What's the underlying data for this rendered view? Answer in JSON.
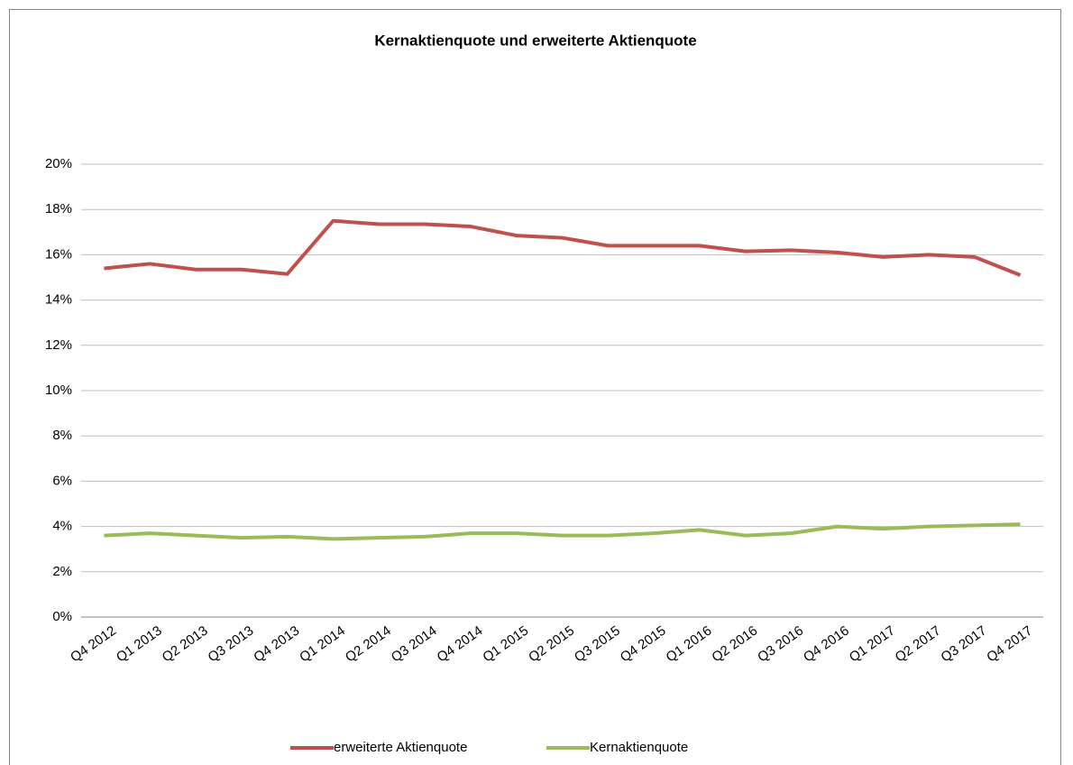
{
  "chart_data": {
    "type": "line",
    "title": "Kernaktienquote und erweiterte Aktienquote",
    "categories": [
      "Q4 2012",
      "Q1 2013",
      "Q2 2013",
      "Q3 2013",
      "Q4 2013",
      "Q1 2014",
      "Q2 2014",
      "Q3 2014",
      "Q4 2014",
      "Q1 2015",
      "Q2 2015",
      "Q3 2015",
      "Q4 2015",
      "Q1 2016",
      "Q2 2016",
      "Q3 2016",
      "Q4 2016",
      "Q1 2017",
      "Q2 2017",
      "Q3 2017",
      "Q4 2017"
    ],
    "series": [
      {
        "name": "erweiterte Aktienquote",
        "color": "#c0504d",
        "values": [
          15.4,
          15.6,
          15.35,
          15.35,
          15.15,
          17.5,
          17.35,
          17.35,
          17.25,
          16.85,
          16.75,
          16.4,
          16.4,
          16.4,
          16.15,
          16.2,
          16.1,
          15.9,
          16.0,
          15.9,
          15.1
        ]
      },
      {
        "name": "Kernaktienquote",
        "color": "#9bbb59",
        "values": [
          3.6,
          3.7,
          3.6,
          3.5,
          3.55,
          3.45,
          3.5,
          3.55,
          3.7,
          3.7,
          3.6,
          3.6,
          3.7,
          3.85,
          3.6,
          3.7,
          4.0,
          3.9,
          4.0,
          4.05,
          4.1
        ]
      }
    ],
    "ylim": [
      0,
      20
    ],
    "yticks": [
      {
        "value": 0,
        "label": "0%"
      },
      {
        "value": 2,
        "label": "2%"
      },
      {
        "value": 4,
        "label": "4%"
      },
      {
        "value": 6,
        "label": "6%"
      },
      {
        "value": 8,
        "label": "8%"
      },
      {
        "value": 10,
        "label": "10%"
      },
      {
        "value": 12,
        "label": "12%"
      },
      {
        "value": 14,
        "label": "14%"
      },
      {
        "value": 16,
        "label": "16%"
      },
      {
        "value": 18,
        "label": "18%"
      },
      {
        "value": 20,
        "label": "20%"
      }
    ],
    "grid": true,
    "legend": "bottom"
  }
}
